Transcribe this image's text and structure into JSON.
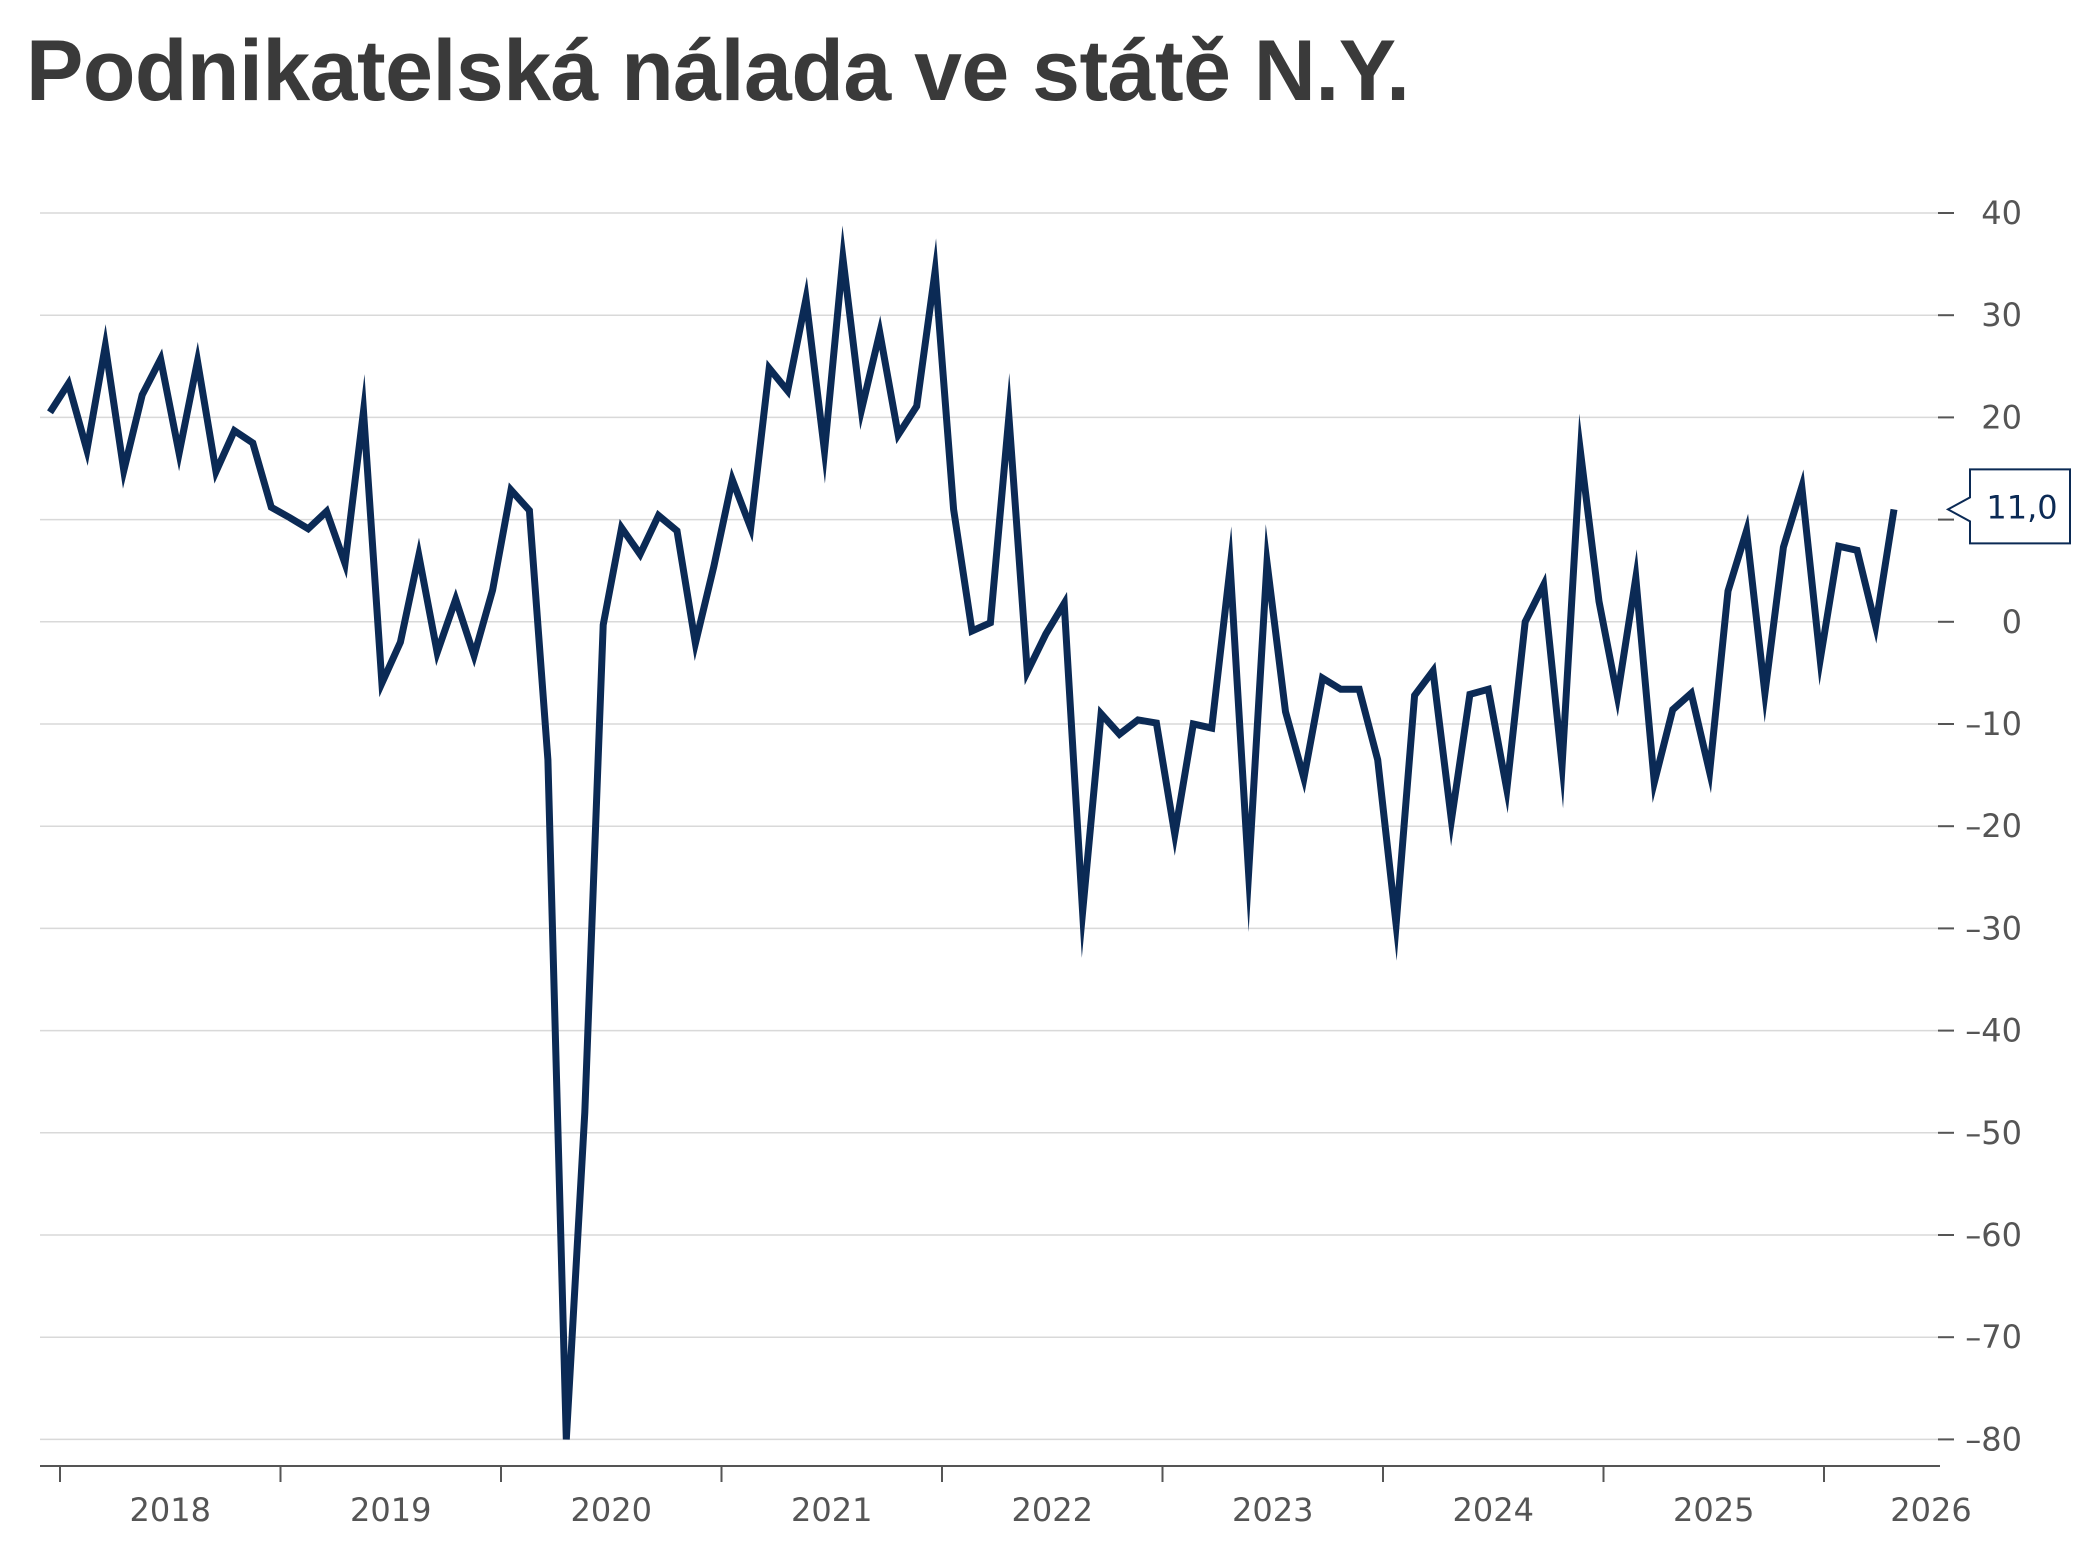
{
  "chart_data": {
    "type": "line",
    "title": "Podnikatelská nálada ve státě N.Y.",
    "xlabel": "",
    "ylabel": "",
    "ylim": [
      -80,
      40
    ],
    "yticks": [
      40,
      30,
      20,
      10,
      0,
      -10,
      -20,
      -30,
      -40,
      -50,
      -60,
      -70,
      -80
    ],
    "ytick_labels": [
      "40",
      "30",
      "20",
      "",
      "0",
      "-10",
      "-20",
      "-30",
      "-40",
      "-50",
      "-60",
      "-70",
      "-80"
    ],
    "xticks": [
      "2018",
      "2019",
      "2020",
      "2021",
      "2022",
      "2023",
      "2024",
      "2025",
      "2026"
    ],
    "grid": true,
    "last_value_label": "11,0",
    "line_color": "#0b2a55",
    "series": [
      {
        "values": [
          20.5,
          23.3,
          16.8,
          27.0,
          14.8,
          22.2,
          25.7,
          16.5,
          25.5,
          14.7,
          18.7,
          17.5,
          11.2,
          10.2,
          9.1,
          10.8,
          5.7,
          20.6,
          -6.0,
          -2.0,
          6.5,
          -3.0,
          2.2,
          -3.3,
          3.1,
          12.9,
          10.9,
          -13.5,
          -80.0,
          -48.0,
          -0.3,
          9.2,
          6.6,
          10.4,
          8.9,
          -2.1,
          5.4,
          13.9,
          9.2,
          24.8,
          22.6,
          31.6,
          16.7,
          35.6,
          20.7,
          28.3,
          18.3,
          21.1,
          34.3,
          11.0,
          -0.9,
          -0.1,
          20.1,
          -4.9,
          -1.2,
          1.8,
          -28.4,
          -9.0,
          -11.0,
          -9.6,
          -9.9,
          -20.8,
          -10.0,
          -10.4,
          5.4,
          -24.6,
          5.8,
          -8.8,
          -15.3,
          -5.5,
          -6.6,
          -6.6,
          -13.5,
          -29.6,
          -7.2,
          -4.8,
          -19.4,
          -7.1,
          -6.6,
          -16.4,
          0.0,
          3.6,
          -14.0,
          16.6,
          2.0,
          -7.3,
          4.3,
          -15.7,
          -8.6,
          -7.0,
          -14.7,
          3.0,
          8.9,
          -7.0,
          7.3,
          13.2,
          -3.7,
          7.4,
          7.0,
          -0.4,
          11.0
        ]
      }
    ]
  }
}
